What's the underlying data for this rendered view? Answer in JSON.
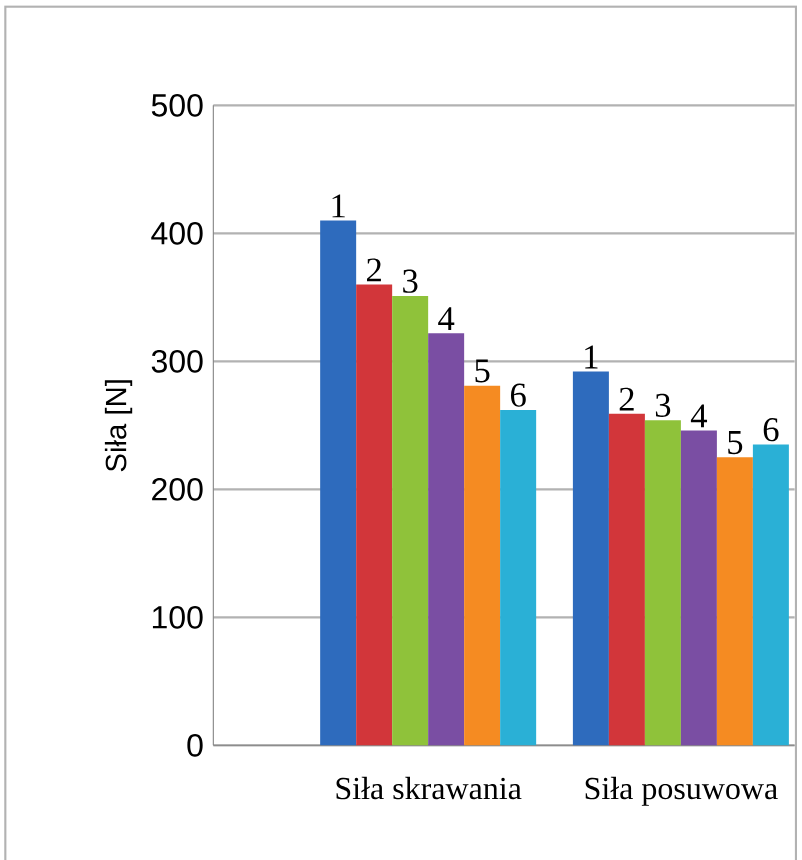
{
  "chart_data": {
    "type": "bar",
    "ylabel": "Siła [N]",
    "categories": [
      "Siła skrawania",
      "Siła posuwowa"
    ],
    "ylim": [
      0,
      500
    ],
    "yticks": [
      0,
      100,
      200,
      300,
      400,
      500
    ],
    "grid": "y",
    "series": [
      {
        "name": "1",
        "color": "#2e6bbd",
        "values": [
          410,
          292
        ]
      },
      {
        "name": "2",
        "color": "#d2363a",
        "values": [
          360,
          259
        ]
      },
      {
        "name": "3",
        "color": "#8fc23a",
        "values": [
          351,
          254
        ]
      },
      {
        "name": "4",
        "color": "#7a4ea3",
        "values": [
          322,
          246
        ]
      },
      {
        "name": "5",
        "color": "#f58b22",
        "values": [
          281,
          225
        ]
      },
      {
        "name": "6",
        "color": "#2ab0d6",
        "values": [
          262,
          235
        ]
      }
    ]
  }
}
